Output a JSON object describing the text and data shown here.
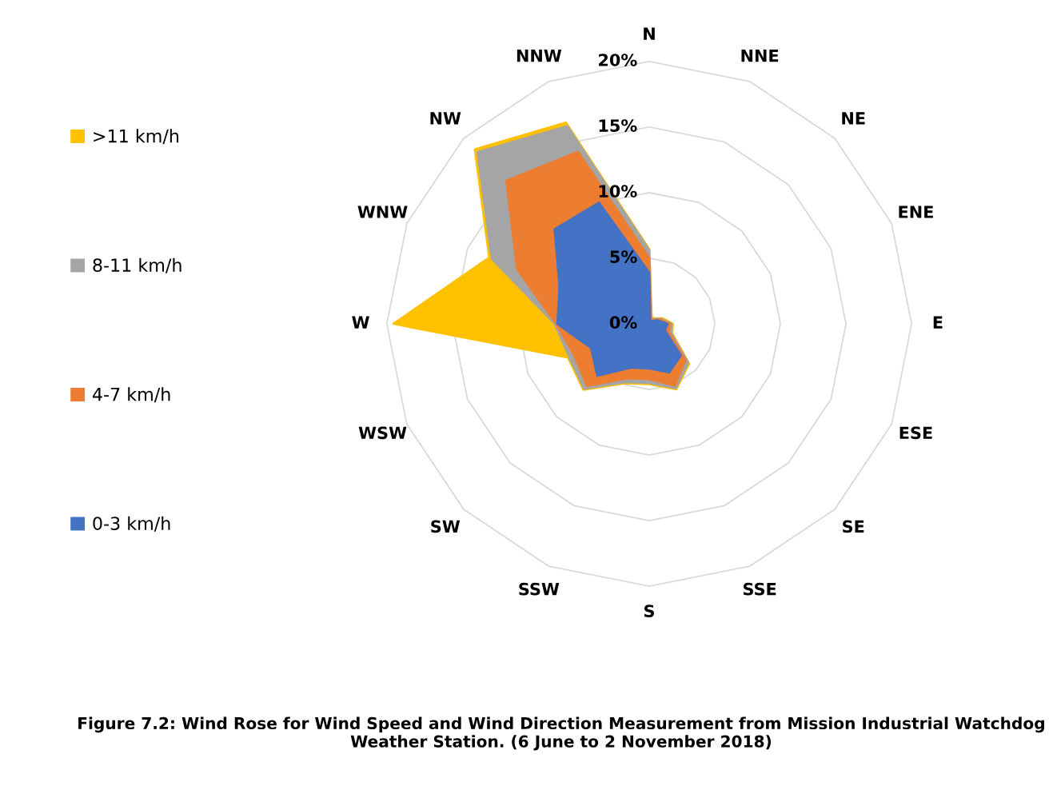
{
  "chart_data": {
    "type": "radar",
    "title": "Figure 7.2: Wind Rose for Wind Speed and Wind Direction Measurement from Mission Industrial Watchdog Weather Station. (6 June to 2 November 2018)",
    "categories": [
      "N",
      "NNE",
      "NE",
      "ENE",
      "E",
      "ESE",
      "SE",
      "SSE",
      "S",
      "SSW",
      "SW",
      "WSW",
      "W",
      "WNW",
      "NW",
      "NNW"
    ],
    "series": [
      {
        "name": ">11 km/h",
        "color": "#ffc000",
        "values": [
          5.7,
          0.5,
          0.6,
          1.1,
          1.8,
          1.9,
          4.3,
          5.4,
          4.6,
          4.9,
          7.1,
          6.7,
          19.5,
          13.2,
          18.8,
          16.6
        ]
      },
      {
        "name": "8-11 km/h",
        "color": "#a5a5a5",
        "values": [
          5.6,
          0.4,
          0.5,
          1.0,
          1.7,
          1.8,
          4.2,
          5.3,
          4.5,
          4.8,
          7.0,
          6.6,
          7.2,
          13.0,
          18.5,
          16.3
        ]
      },
      {
        "name": "4-7 km/h",
        "color": "#ed7d31",
        "values": [
          5.0,
          0.3,
          0.4,
          0.9,
          1.6,
          1.6,
          3.9,
          5.1,
          4.2,
          4.5,
          6.7,
          6.2,
          7.1,
          10.9,
          15.4,
          14.2
        ]
      },
      {
        "name": "0-3 km/h",
        "color": "#4472c4",
        "values": [
          3.9,
          0.2,
          0.3,
          0.7,
          1.4,
          1.3,
          3.4,
          4.0,
          3.4,
          3.6,
          5.6,
          4.8,
          7.0,
          7.4,
          10.2,
          10.0
        ]
      }
    ],
    "ylim": [
      0,
      20
    ],
    "yticks": [
      {
        "value": 0,
        "label": "0%"
      },
      {
        "value": 5,
        "label": "5%"
      },
      {
        "value": 10,
        "label": "10%"
      },
      {
        "value": 15,
        "label": "15%"
      },
      {
        "value": 20,
        "label": "20%"
      }
    ],
    "grid": true,
    "legend": "left"
  }
}
